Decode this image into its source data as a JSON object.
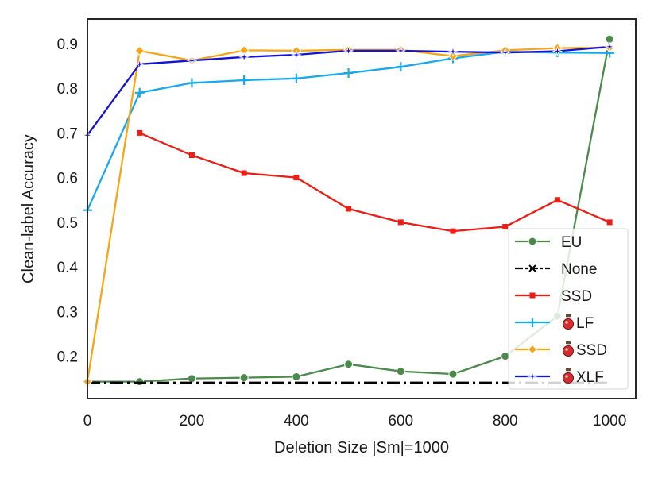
{
  "chart_data": {
    "type": "line",
    "title": "",
    "xlabel": "Deletion Size |Sm|=1000",
    "ylabel": "Clean-label Accuracy",
    "xlim": [
      0,
      1050
    ],
    "ylim": [
      0.105,
      0.955
    ],
    "xticks": [
      0,
      200,
      400,
      600,
      800,
      1000
    ],
    "xtick_labels": [
      "0",
      "200",
      "400",
      "600",
      "800",
      "1000"
    ],
    "yticks": [
      0.2,
      0.3,
      0.4,
      0.5,
      0.6,
      0.7,
      0.8,
      0.9
    ],
    "ytick_labels": [
      "0.2",
      "0.3",
      "0.4",
      "0.5",
      "0.6",
      "0.7",
      "0.8",
      "0.9"
    ],
    "grid": false,
    "legend_position": "bottom-right",
    "series": [
      {
        "name": "EU",
        "label": "EU",
        "has_potion_icon": false,
        "color": "#4a8a4a",
        "marker": "circle",
        "dash": "solid",
        "x": [
          0,
          100,
          200,
          300,
          400,
          500,
          600,
          700,
          800,
          900,
          1000
        ],
        "y": [
          0.143,
          0.143,
          0.15,
          0.152,
          0.154,
          0.182,
          0.166,
          0.16,
          0.2,
          0.29,
          0.91
        ]
      },
      {
        "name": "None",
        "label": "None",
        "has_potion_icon": false,
        "color": "#000000",
        "marker": "x",
        "dash": "dashdot",
        "x": [
          0,
          1000
        ],
        "y": [
          0.141,
          0.141
        ]
      },
      {
        "name": "SSD",
        "label": "SSD",
        "has_potion_icon": false,
        "color": "#ee1c12",
        "marker": "square",
        "dash": "solid",
        "x": [
          100,
          200,
          300,
          400,
          500,
          600,
          700,
          800,
          900,
          1000
        ],
        "y": [
          0.7,
          0.65,
          0.61,
          0.6,
          0.53,
          0.5,
          0.48,
          0.49,
          0.55,
          0.5
        ]
      },
      {
        "name": "Potion LF",
        "label": "LF",
        "has_potion_icon": true,
        "color": "#17a9ec",
        "marker": "plus",
        "dash": "solid",
        "x": [
          0,
          100,
          200,
          300,
          400,
          500,
          600,
          700,
          800,
          900,
          1000
        ],
        "y": [
          0.527,
          0.79,
          0.812,
          0.818,
          0.822,
          0.834,
          0.848,
          0.867,
          0.882,
          0.88,
          0.879
        ]
      },
      {
        "name": "Potion SSD",
        "label": "SSD",
        "has_potion_icon": true,
        "color": "#f5a516",
        "marker": "diamond",
        "dash": "solid",
        "x": [
          0,
          100,
          200,
          300,
          400,
          500,
          600,
          700,
          800,
          900,
          1000
        ],
        "y": [
          0.143,
          0.884,
          0.862,
          0.885,
          0.884,
          0.886,
          0.886,
          0.872,
          0.885,
          0.89,
          0.891
        ]
      },
      {
        "name": "Potion XLF",
        "label": "XLF",
        "has_potion_icon": true,
        "color": "#1212d8",
        "marker": "star",
        "dash": "solid",
        "x": [
          0,
          100,
          200,
          300,
          400,
          500,
          600,
          700,
          800,
          900,
          1000
        ],
        "y": [
          0.695,
          0.854,
          0.862,
          0.87,
          0.875,
          0.884,
          0.884,
          0.882,
          0.88,
          0.883,
          0.893
        ]
      }
    ]
  }
}
